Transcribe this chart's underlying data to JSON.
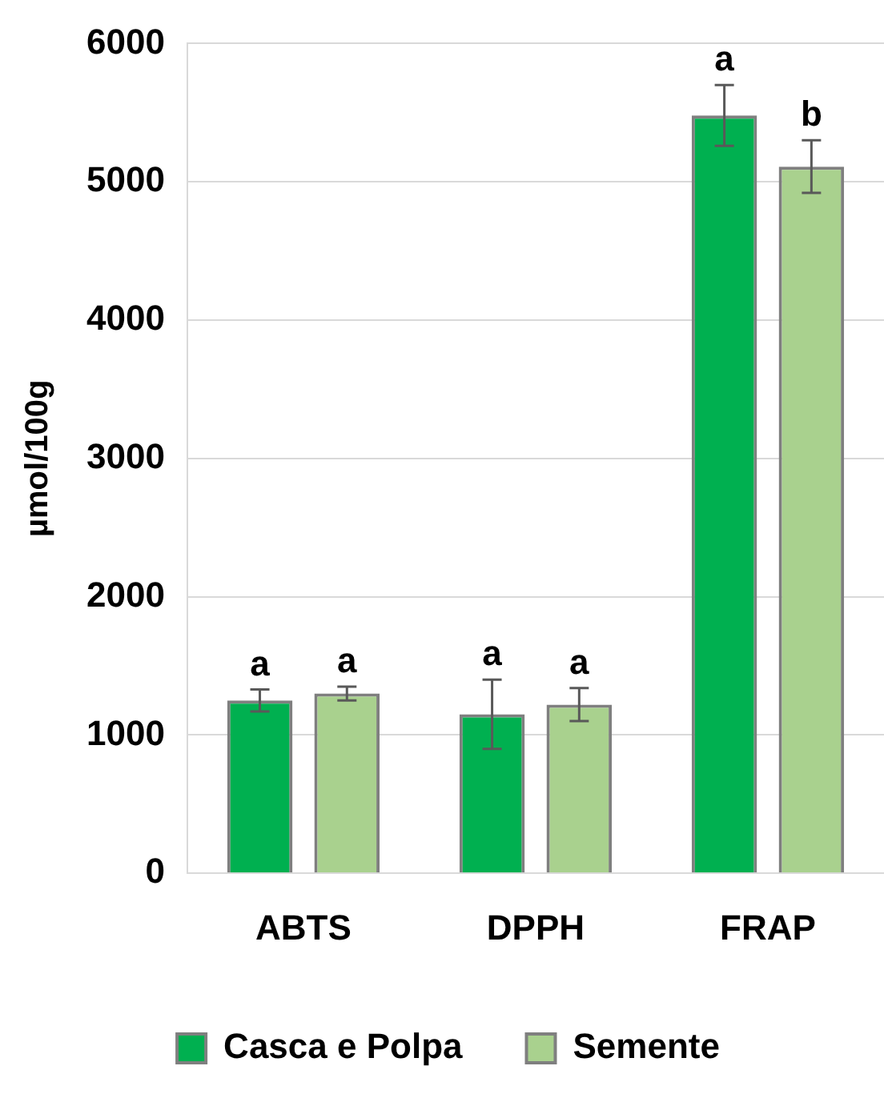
{
  "chart_data": {
    "type": "bar",
    "ylabel": "µmol/100g",
    "categories": [
      "ABTS",
      "DPPH",
      "FRAP"
    ],
    "series": [
      {
        "name": "Casca e Polpa",
        "color": "#00b050",
        "values": [
          1250,
          1150,
          5480
        ],
        "errors": [
          80,
          250,
          220
        ],
        "value_labels": [
          "a",
          "a",
          "a"
        ]
      },
      {
        "name": "Semente",
        "color": "#a9d18e",
        "values": [
          1300,
          1220,
          5110
        ],
        "errors": [
          50,
          120,
          190
        ],
        "value_labels": [
          "a",
          "a",
          "b"
        ]
      }
    ],
    "ylim": [
      0,
      6000
    ],
    "yticks": [
      0,
      1000,
      2000,
      3000,
      4000,
      5000,
      6000
    ],
    "grid": "y",
    "legend": "bottom"
  }
}
